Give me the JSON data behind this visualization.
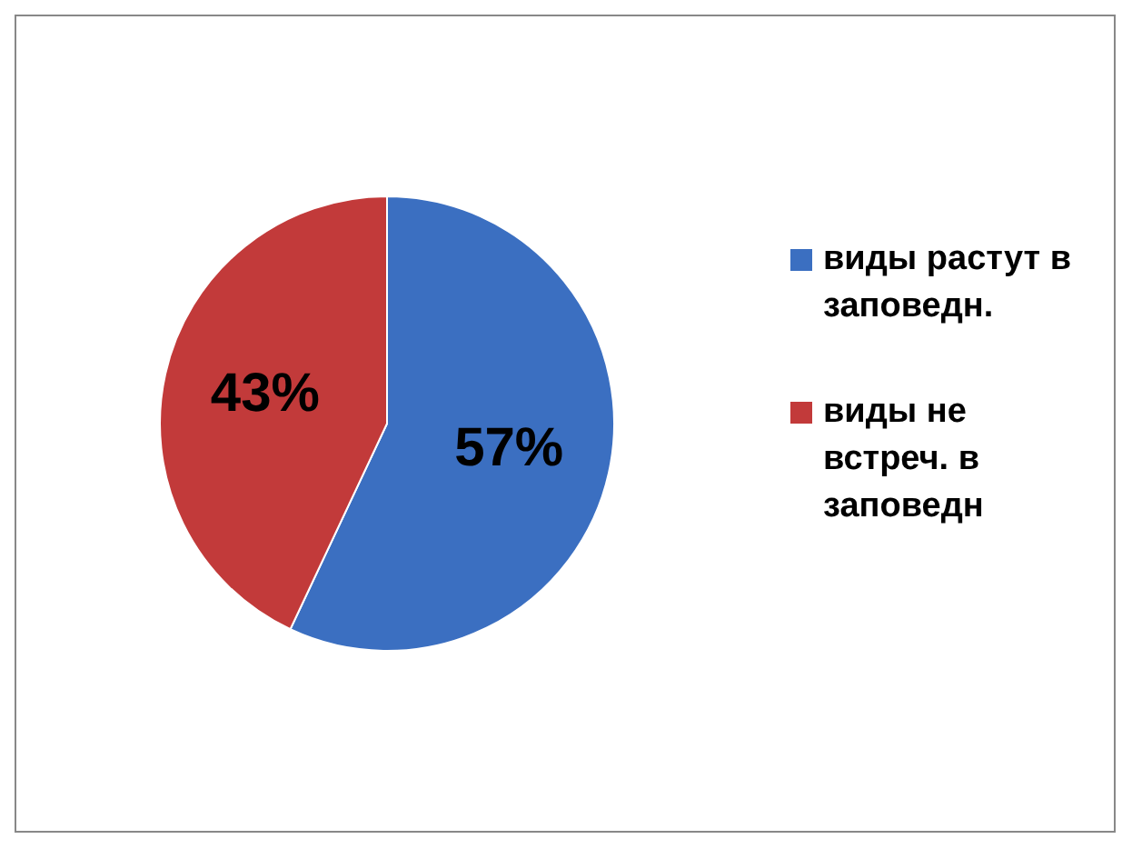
{
  "chart_data": {
    "type": "pie",
    "categories": [
      "виды растут в заповедн.",
      "виды не встреч. в заповедн"
    ],
    "values": [
      57,
      43
    ],
    "colors": [
      "#3b6fc1",
      "#c23a3a"
    ],
    "value_labels": [
      "57%",
      "43%"
    ],
    "legend": "right"
  }
}
